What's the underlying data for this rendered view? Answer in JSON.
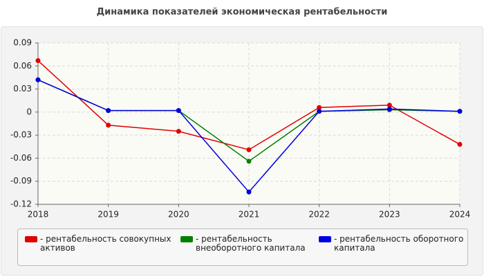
{
  "chart_data": {
    "type": "line",
    "title": "Динамика показателей экономическая рентабельности",
    "categories": [
      "2018",
      "2019",
      "2020",
      "2021",
      "2022",
      "2023",
      "2024"
    ],
    "ylim": [
      -0.12,
      0.09
    ],
    "yticks": [
      0.09,
      0.06,
      0.03,
      0,
      -0.03,
      -0.06,
      -0.09,
      -0.12
    ],
    "grid": true,
    "series": [
      {
        "name": "- рентабельность совокупных активов",
        "color": "#e00000",
        "values": [
          0.067,
          -0.017,
          -0.025,
          -0.049,
          0.006,
          0.009,
          -0.042
        ]
      },
      {
        "name": "- рентабельность внеоборотного капитала",
        "color": "#008000",
        "values": [
          0.042,
          0.002,
          0.002,
          -0.064,
          0.001,
          0.003,
          0.001
        ]
      },
      {
        "name": "- рентабельность оборотного капитала",
        "color": "#0000e0",
        "values": [
          0.042,
          0.002,
          0.002,
          -0.104,
          0.001,
          0.004,
          0.001
        ]
      }
    ]
  }
}
